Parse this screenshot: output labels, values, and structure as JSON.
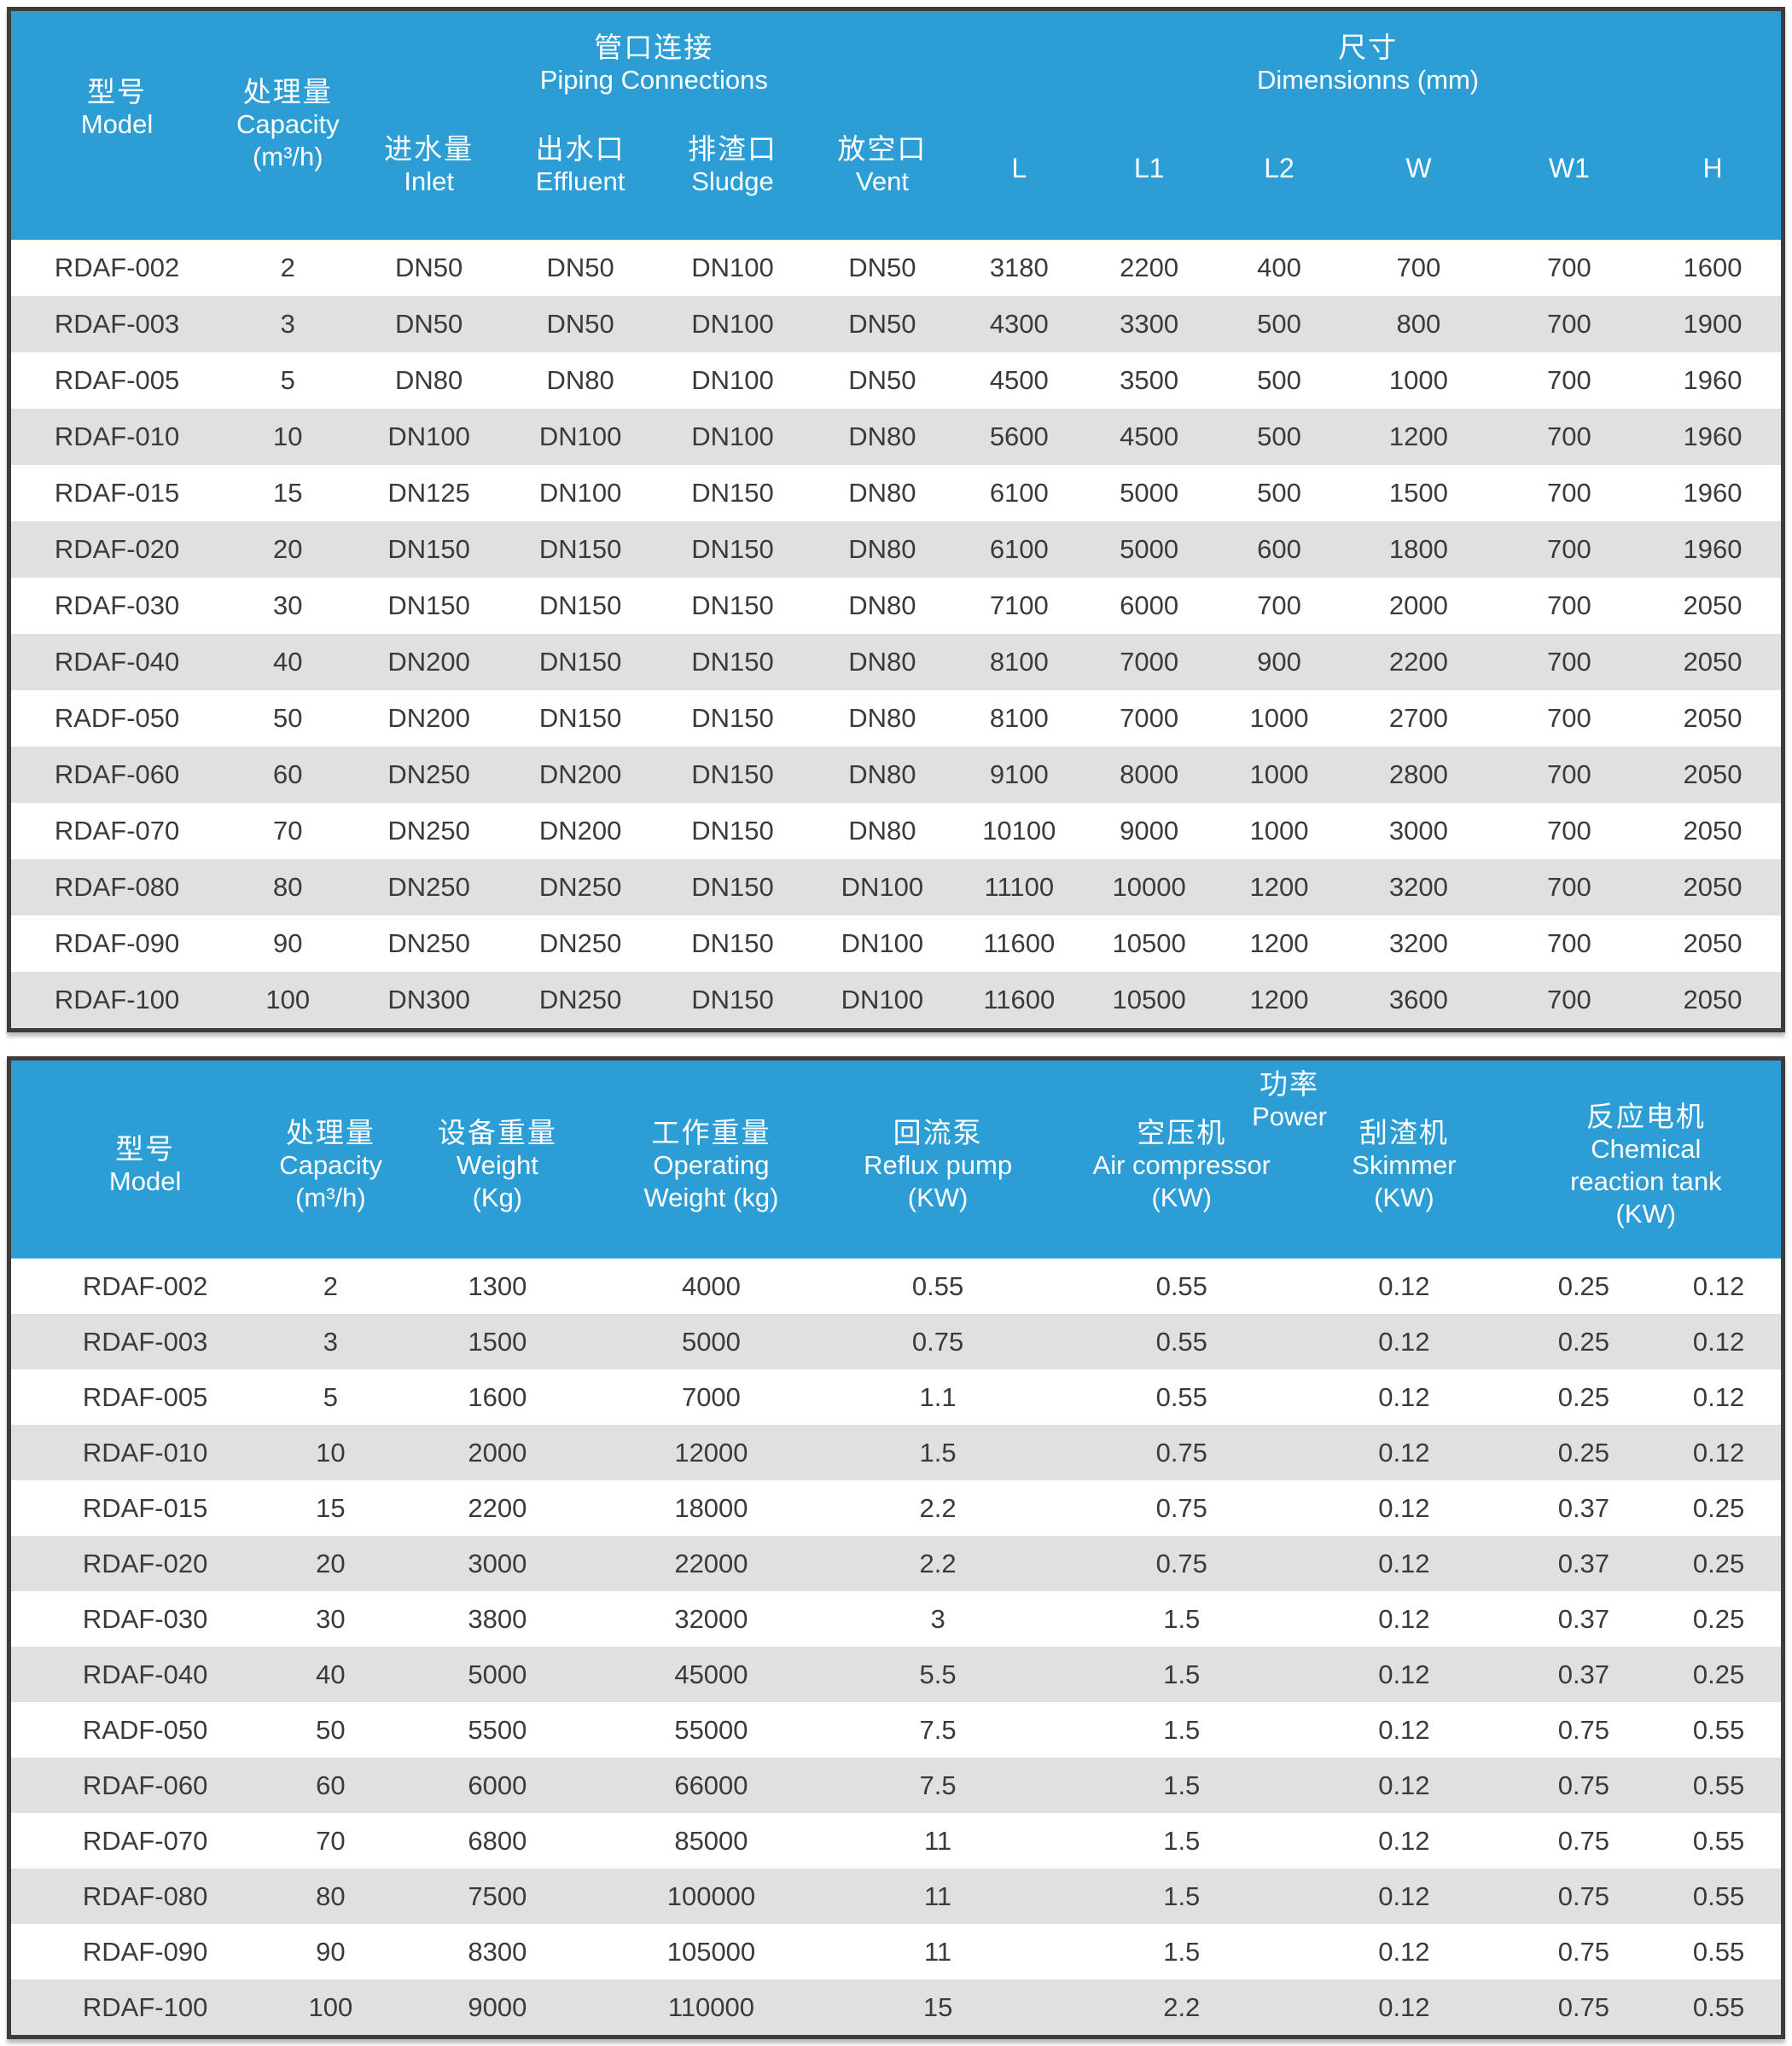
{
  "colors": {
    "accent": "#2D9DD5",
    "stripe": "#E0E0E0",
    "border": "#3C3C3C",
    "text": "#3A3A3A",
    "header_text": "#FFFFFF"
  },
  "table1": {
    "header": {
      "model_zh": "型号",
      "model_en": "Model",
      "capacity_zh": "处理量",
      "capacity_en": "Capacity",
      "capacity_unit": "(m³/h)",
      "piping_group_zh": "管口连接",
      "piping_group_en": "Piping Connections",
      "dimensions_group_zh": "尺寸",
      "dimensions_group_en": "Dimensionns (mm)",
      "piping_cols": [
        {
          "zh": "进水量",
          "en": "Inlet"
        },
        {
          "zh": "出水口",
          "en": "Effluent"
        },
        {
          "zh": "排渣口",
          "en": "Sludge"
        },
        {
          "zh": "放空口",
          "en": "Vent"
        }
      ],
      "dimension_cols": [
        "L",
        "L1",
        "L2",
        "W",
        "W1",
        "H"
      ]
    },
    "rows": [
      [
        "RDAF-002",
        "2",
        "DN50",
        "DN50",
        "DN100",
        "DN50",
        "3180",
        "2200",
        "400",
        "700",
        "700",
        "1600"
      ],
      [
        "RDAF-003",
        "3",
        "DN50",
        "DN50",
        "DN100",
        "DN50",
        "4300",
        "3300",
        "500",
        "800",
        "700",
        "1900"
      ],
      [
        "RDAF-005",
        "5",
        "DN80",
        "DN80",
        "DN100",
        "DN50",
        "4500",
        "3500",
        "500",
        "1000",
        "700",
        "1960"
      ],
      [
        "RDAF-010",
        "10",
        "DN100",
        "DN100",
        "DN100",
        "DN80",
        "5600",
        "4500",
        "500",
        "1200",
        "700",
        "1960"
      ],
      [
        "RDAF-015",
        "15",
        "DN125",
        "DN100",
        "DN150",
        "DN80",
        "6100",
        "5000",
        "500",
        "1500",
        "700",
        "1960"
      ],
      [
        "RDAF-020",
        "20",
        "DN150",
        "DN150",
        "DN150",
        "DN80",
        "6100",
        "5000",
        "600",
        "1800",
        "700",
        "1960"
      ],
      [
        "RDAF-030",
        "30",
        "DN150",
        "DN150",
        "DN150",
        "DN80",
        "7100",
        "6000",
        "700",
        "2000",
        "700",
        "2050"
      ],
      [
        "RDAF-040",
        "40",
        "DN200",
        "DN150",
        "DN150",
        "DN80",
        "8100",
        "7000",
        "900",
        "2200",
        "700",
        "2050"
      ],
      [
        "RADF-050",
        "50",
        "DN200",
        "DN150",
        "DN150",
        "DN80",
        "8100",
        "7000",
        "1000",
        "2700",
        "700",
        "2050"
      ],
      [
        "RDAF-060",
        "60",
        "DN250",
        "DN200",
        "DN150",
        "DN80",
        "9100",
        "8000",
        "1000",
        "2800",
        "700",
        "2050"
      ],
      [
        "RDAF-070",
        "70",
        "DN250",
        "DN200",
        "DN150",
        "DN80",
        "10100",
        "9000",
        "1000",
        "3000",
        "700",
        "2050"
      ],
      [
        "RDAF-080",
        "80",
        "DN250",
        "DN250",
        "DN150",
        "DN100",
        "11100",
        "10000",
        "1200",
        "3200",
        "700",
        "2050"
      ],
      [
        "RDAF-090",
        "90",
        "DN250",
        "DN250",
        "DN150",
        "DN100",
        "11600",
        "10500",
        "1200",
        "3200",
        "700",
        "2050"
      ],
      [
        "RDAF-100",
        "100",
        "DN300",
        "DN250",
        "DN150",
        "DN100",
        "11600",
        "10500",
        "1200",
        "3600",
        "700",
        "2050"
      ]
    ]
  },
  "table2": {
    "header": {
      "model_zh": "型号",
      "model_en": "Model",
      "capacity_zh": "处理量",
      "capacity_en": "Capacity",
      "capacity_unit": "(m³/h)",
      "weight_zh": "设备重量",
      "weight_en": "Weight",
      "weight_unit": "(Kg)",
      "op_weight_zh": "工作重量",
      "op_weight_en": "Operating",
      "op_weight_unit": "Weight (kg)",
      "power_group_zh": "功率",
      "power_group_en": "Power",
      "reflux_zh": "回流泵",
      "reflux_en": "Reflux pump",
      "reflux_unit": "(KW)",
      "compressor_zh": "空压机",
      "compressor_en": "Air compressor",
      "compressor_unit": "(KW)",
      "skimmer_zh": "刮渣机",
      "skimmer_en": "Skimmer",
      "skimmer_unit": "(KW)",
      "reaction_zh": "反应电机",
      "reaction_en1": "Chemical",
      "reaction_en2": "reaction tank",
      "reaction_unit": "(KW)"
    },
    "rows": [
      [
        "RDAF-002",
        "2",
        "1300",
        "4000",
        "0.55",
        "0.55",
        "0.12",
        "0.25",
        "0.12"
      ],
      [
        "RDAF-003",
        "3",
        "1500",
        "5000",
        "0.75",
        "0.55",
        "0.12",
        "0.25",
        "0.12"
      ],
      [
        "RDAF-005",
        "5",
        "1600",
        "7000",
        "1.1",
        "0.55",
        "0.12",
        "0.25",
        "0.12"
      ],
      [
        "RDAF-010",
        "10",
        "2000",
        "12000",
        "1.5",
        "0.75",
        "0.12",
        "0.25",
        "0.12"
      ],
      [
        "RDAF-015",
        "15",
        "2200",
        "18000",
        "2.2",
        "0.75",
        "0.12",
        "0.37",
        "0.25"
      ],
      [
        "RDAF-020",
        "20",
        "3000",
        "22000",
        "2.2",
        "0.75",
        "0.12",
        "0.37",
        "0.25"
      ],
      [
        "RDAF-030",
        "30",
        "3800",
        "32000",
        "3",
        "1.5",
        "0.12",
        "0.37",
        "0.25"
      ],
      [
        "RDAF-040",
        "40",
        "5000",
        "45000",
        "5.5",
        "1.5",
        "0.12",
        "0.37",
        "0.25"
      ],
      [
        "RADF-050",
        "50",
        "5500",
        "55000",
        "7.5",
        "1.5",
        "0.12",
        "0.75",
        "0.55"
      ],
      [
        "RDAF-060",
        "60",
        "6000",
        "66000",
        "7.5",
        "1.5",
        "0.12",
        "0.75",
        "0.55"
      ],
      [
        "RDAF-070",
        "70",
        "6800",
        "85000",
        "11",
        "1.5",
        "0.12",
        "0.75",
        "0.55"
      ],
      [
        "RDAF-080",
        "80",
        "7500",
        "100000",
        "11",
        "1.5",
        "0.12",
        "0.75",
        "0.55"
      ],
      [
        "RDAF-090",
        "90",
        "8300",
        "105000",
        "11",
        "1.5",
        "0.12",
        "0.75",
        "0.55"
      ],
      [
        "RDAF-100",
        "100",
        "9000",
        "110000",
        "15",
        "2.2",
        "0.12",
        "0.75",
        "0.55"
      ]
    ]
  }
}
